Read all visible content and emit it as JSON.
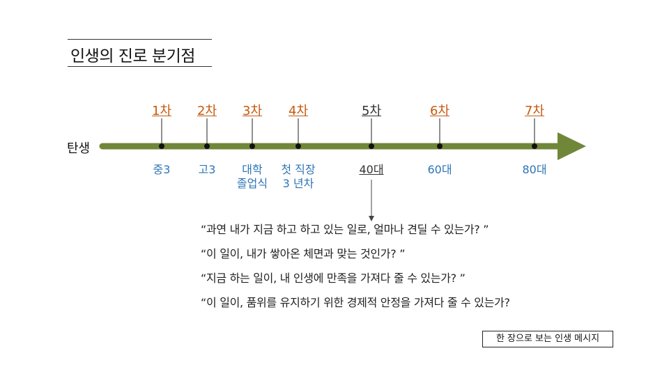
{
  "title": "인생의 진로 분기점",
  "timeline": {
    "start_label": "탄생",
    "axis_color": "#70873a",
    "stage_color": "#c55a11",
    "milestone_color": "#2e75b6",
    "stages": [
      {
        "label": "1차",
        "milestone": "중3"
      },
      {
        "label": "2차",
        "milestone": "고3"
      },
      {
        "label": "3차",
        "milestone": "대학\n졸업식"
      },
      {
        "label": "4차",
        "milestone": "첫 직장\n3 년차"
      },
      {
        "label": "5차",
        "milestone": "40대",
        "current": true
      },
      {
        "label": "6차",
        "milestone": "60대"
      },
      {
        "label": "7차",
        "milestone": "80대"
      }
    ]
  },
  "questions": [
    "“과연 내가 지금 하고 하고 있는 일로, 얼마나 견딜 수 있는가? ”",
    "“이 일이, 내가 쌓아온 체면과 맞는 것인가? ”",
    "“지금 하는 일이, 내 인생에 만족을 가져다 줄 수 있는가? ”",
    "“이 일이, 품위를 유지하기 위한 경제적 안정을 가져다 줄 수 있는가?"
  ],
  "footer_badge": "한 장으로 보는 인생 메시지"
}
